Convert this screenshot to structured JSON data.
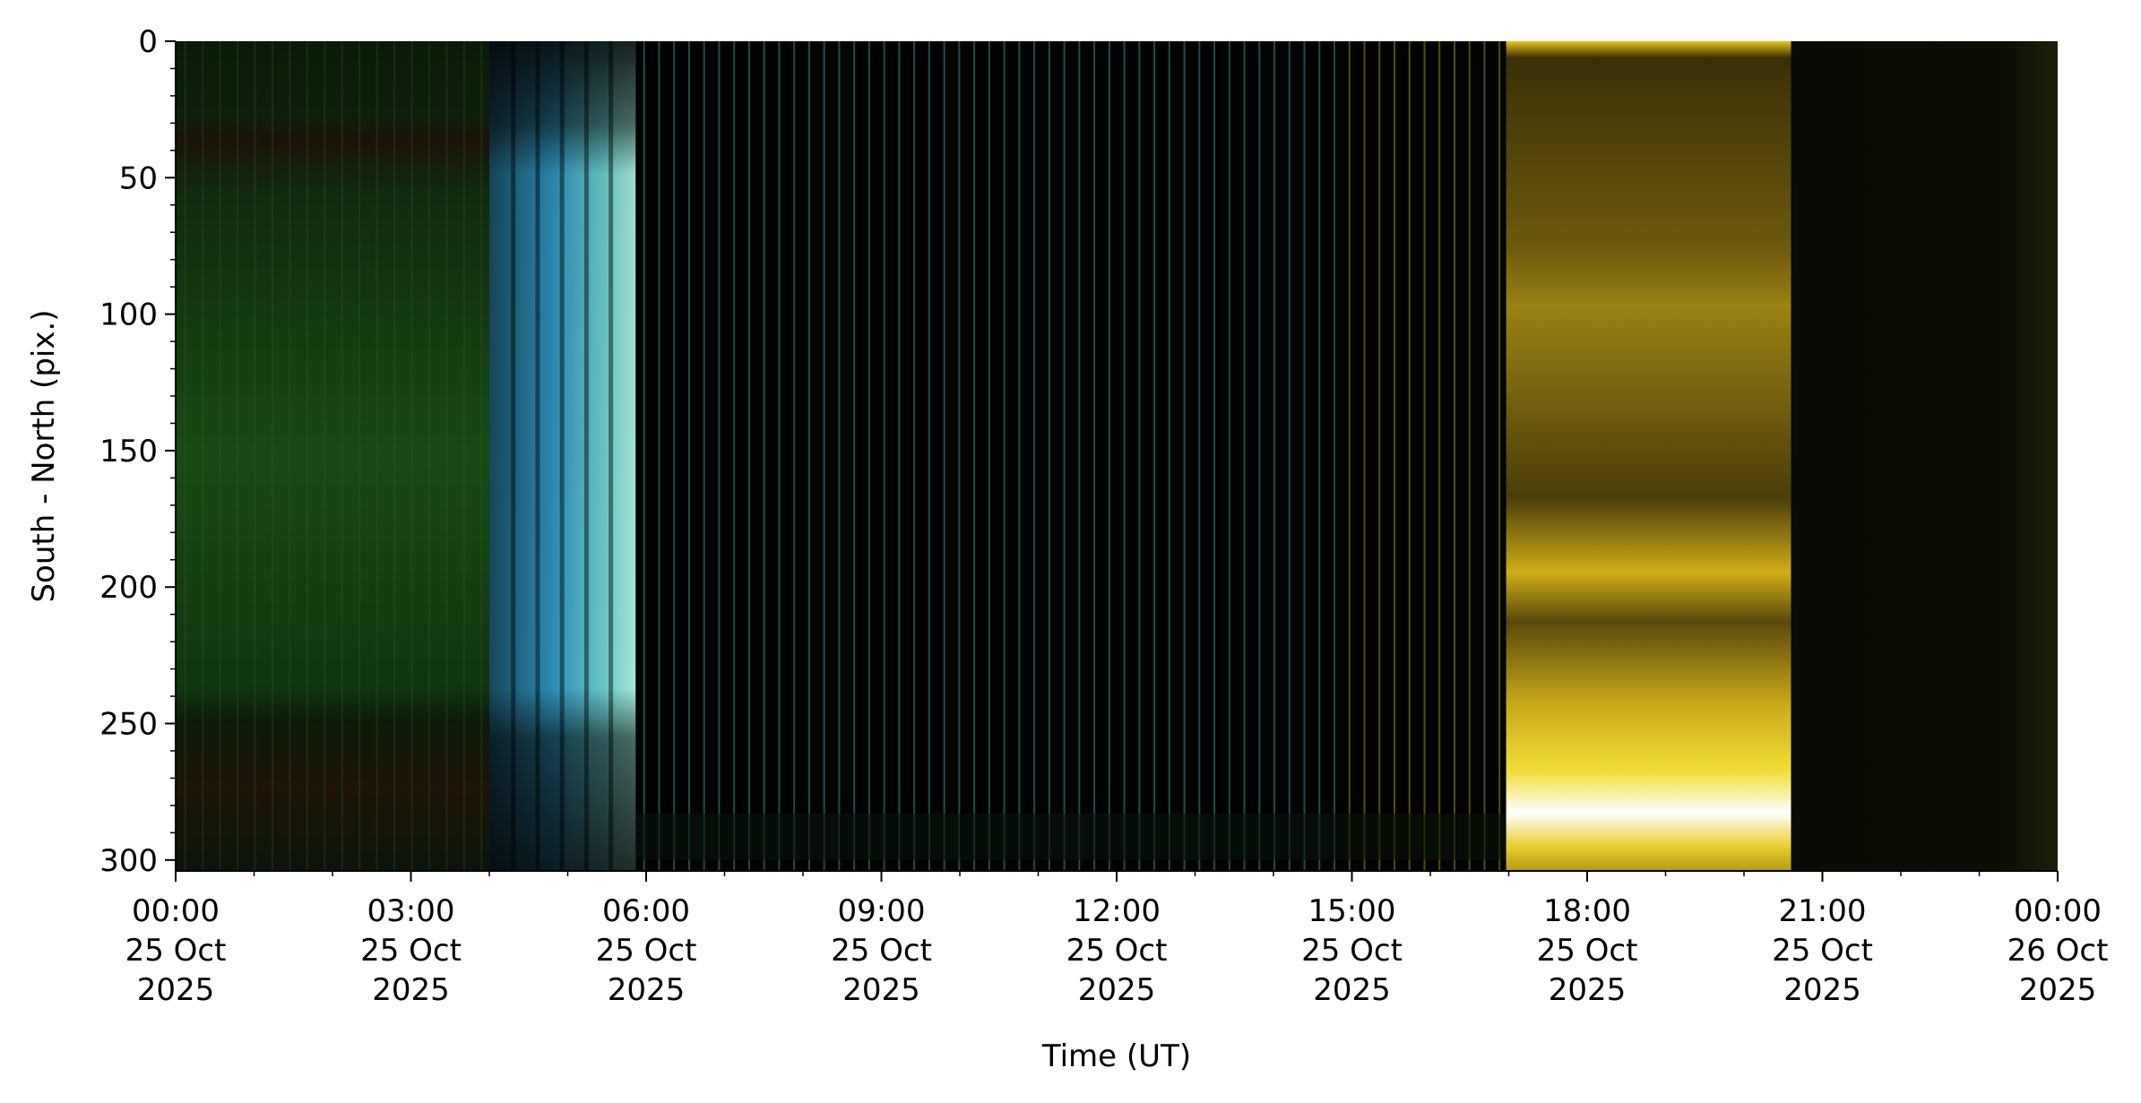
{
  "chart_data": {
    "type": "heatmap",
    "title": "",
    "xlabel": "Time (UT)",
    "ylabel": "South - North (pix.)",
    "xlim": [
      "2025-10-25T00:00",
      "2025-10-26T00:00"
    ],
    "ylim": [
      304,
      0
    ],
    "y_inverted": true,
    "grid": false,
    "x_ticks": [
      {
        "time": "2025-10-25T00:00",
        "lines": [
          "00:00",
          "25 Oct",
          "2025"
        ]
      },
      {
        "time": "2025-10-25T03:00",
        "lines": [
          "03:00",
          "25 Oct",
          "2025"
        ]
      },
      {
        "time": "2025-10-25T06:00",
        "lines": [
          "06:00",
          "25 Oct",
          "2025"
        ]
      },
      {
        "time": "2025-10-25T09:00",
        "lines": [
          "09:00",
          "25 Oct",
          "2025"
        ]
      },
      {
        "time": "2025-10-25T12:00",
        "lines": [
          "12:00",
          "25 Oct",
          "2025"
        ]
      },
      {
        "time": "2025-10-25T15:00",
        "lines": [
          "15:00",
          "25 Oct",
          "2025"
        ]
      },
      {
        "time": "2025-10-25T18:00",
        "lines": [
          "18:00",
          "25 Oct",
          "2025"
        ]
      },
      {
        "time": "2025-10-25T21:00",
        "lines": [
          "21:00",
          "25 Oct",
          "2025"
        ]
      },
      {
        "time": "2025-10-26T00:00",
        "lines": [
          "00:00",
          "26 Oct",
          "2025"
        ]
      }
    ],
    "y_ticks": [
      0,
      50,
      100,
      150,
      200,
      250,
      300
    ],
    "regions": [
      {
        "name": "green",
        "start": "2025-10-25T00:00",
        "end": "2025-10-25T04:00",
        "color": "#163d12"
      },
      {
        "name": "cyan",
        "start": "2025-10-25T04:00",
        "end": "2025-10-25T05:52",
        "color": "#3aa6c2"
      },
      {
        "name": "dark-stripes",
        "start": "2025-10-25T05:52",
        "end": "2025-10-25T16:58",
        "color": "#020302"
      },
      {
        "name": "yellow",
        "start": "2025-10-25T16:58",
        "end": "2025-10-25T20:36",
        "color": "#8a7310"
      },
      {
        "name": "dark-olive",
        "start": "2025-10-25T20:36",
        "end": "2025-10-26T00:00",
        "color": "#0b0c04"
      }
    ],
    "stripe_color": "#3b8a8a"
  }
}
